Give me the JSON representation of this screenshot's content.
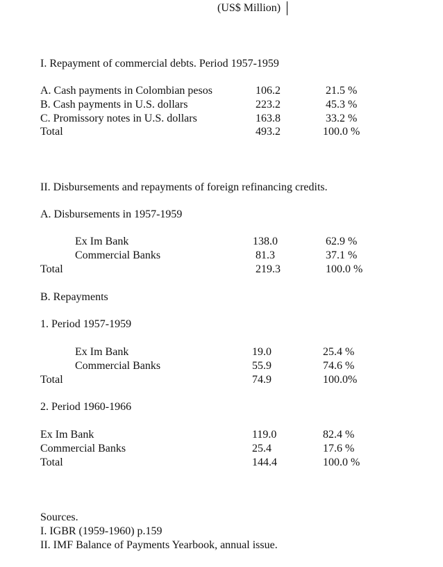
{
  "unit_title": "(US$ Million)",
  "section1": {
    "heading": "I. Repayment of commercial debts. Period 1957-1959",
    "rows": [
      {
        "label": "A. Cash payments in Colombian pesos",
        "value": "106.2",
        "pct": "21.5 %"
      },
      {
        "label": "B. Cash payments in U.S. dollars",
        "value": "223.2",
        "pct": "45.3 %"
      },
      {
        "label": "C. Promissory notes in U.S. dollars",
        "value": "163.8",
        "pct": "33.2 %"
      },
      {
        "label": "Total",
        "value": "493.2",
        "pct": "100.0 %"
      }
    ]
  },
  "section2": {
    "heading": "II. Disbursements and repayments of foreign refinancing credits.",
    "a_heading": "A. Disbursements in 1957-1959",
    "a_rows": [
      {
        "label": "Ex Im Bank",
        "value": "138.0",
        "pct": "62.9 %"
      },
      {
        "label": "Commercial Banks",
        "value": "81.3",
        "pct": "37.1 %"
      },
      {
        "label": "Total",
        "value": "219.3",
        "pct": "100.0 %"
      }
    ],
    "b_heading": "B. Repayments",
    "b1_heading": "1. Period 1957-1959",
    "b1_rows": [
      {
        "label": "Ex Im Bank",
        "value": "19.0",
        "pct": "25.4 %"
      },
      {
        "label": "Commercial Banks",
        "value": "55.9",
        "pct": "74.6 %"
      },
      {
        "label": "Total",
        "value": "74.9",
        "pct": "100.0%"
      }
    ],
    "b2_heading": "2. Period 1960-1966",
    "b2_rows": [
      {
        "label": "Ex Im Bank",
        "value": "119.0",
        "pct": "82.4 %"
      },
      {
        "label": "Commercial Banks",
        "value": "25.4",
        "pct": "17.6 %"
      },
      {
        "label": "Total",
        "value": "144.4",
        "pct": "100.0 %"
      }
    ]
  },
  "sources": {
    "heading": "Sources.",
    "items": [
      "I. IGBR (1959-1960) p.159",
      "II. IMF Balance of Payments Yearbook, annual issue."
    ]
  }
}
